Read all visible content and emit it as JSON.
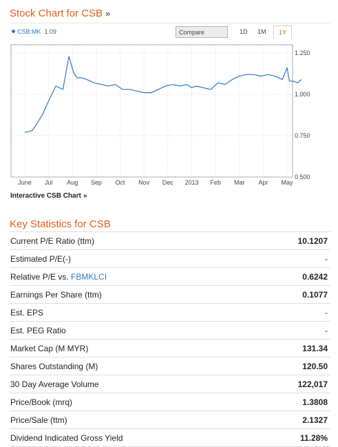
{
  "chart_section": {
    "title": "Stock Chart for CSB",
    "title_chevron": "»",
    "legend": {
      "ticker": "CSB:MK",
      "price": "1.09"
    },
    "compare": {
      "value": "Compare"
    },
    "ranges": [
      {
        "label": "1D",
        "active": false
      },
      {
        "label": "1M",
        "active": false
      },
      {
        "label": "1Y",
        "active": true
      }
    ],
    "interactive_link": {
      "label": "Interactive CSB Chart",
      "chevron": "»"
    }
  },
  "chart_data": {
    "type": "line",
    "title": "",
    "xlabel": "",
    "ylabel": "",
    "x_tick_labels": [
      "June",
      "Jul",
      "Aug",
      "Sep",
      "Oct",
      "Nov",
      "Dec",
      "2013",
      "Feb",
      "Mar",
      "Apr",
      "May"
    ],
    "y_tick_labels": [
      "1.250",
      "1.000",
      "0.750",
      "0.500"
    ],
    "ylim": [
      0.5,
      1.3
    ],
    "grid": true,
    "series": [
      {
        "name": "CSB:MK",
        "x": [
          0,
          0.3,
          0.5,
          0.75,
          1,
          1.3,
          1.6,
          1.85,
          2.05,
          2.2,
          2.4,
          2.6,
          2.9,
          3.2,
          3.5,
          3.8,
          4.1,
          4.4,
          4.7,
          5,
          5.3,
          5.6,
          5.9,
          6.2,
          6.5,
          6.8,
          7,
          7.2,
          7.5,
          7.8,
          8.1,
          8.4,
          8.7,
          9,
          9.3,
          9.6,
          9.9,
          10.2,
          10.5,
          10.8,
          11,
          11.1,
          11.25,
          11.45,
          11.6
        ],
        "values": [
          0.77,
          0.78,
          0.82,
          0.88,
          0.96,
          1.05,
          1.03,
          1.23,
          1.13,
          1.1,
          1.1,
          1.09,
          1.07,
          1.06,
          1.05,
          1.06,
          1.03,
          1.03,
          1.02,
          1.01,
          1.01,
          1.03,
          1.05,
          1.06,
          1.05,
          1.06,
          1.04,
          1.05,
          1.04,
          1.03,
          1.07,
          1.06,
          1.09,
          1.11,
          1.12,
          1.12,
          1.11,
          1.12,
          1.11,
          1.09,
          1.16,
          1.08,
          1.08,
          1.07,
          1.09
        ],
        "color": "#2d78c8"
      }
    ]
  },
  "stats_section": {
    "title": "Key Statistics for CSB",
    "rows": [
      {
        "label": "Current P/E Ratio (ttm)",
        "value": "10.1207"
      },
      {
        "label": "Estimated P/E(-)",
        "value": "-"
      },
      {
        "label": "Relative P/E vs.",
        "link": "FBMKLCI",
        "value": "0.6242"
      },
      {
        "label": "Earnings Per Share (ttm)",
        "value": "0.1077"
      },
      {
        "label": "Est. EPS",
        "value": "-"
      },
      {
        "label": "Est. PEG Ratio",
        "value": "-"
      },
      {
        "label": "Market Cap (M MYR)",
        "value": "131.34"
      },
      {
        "label": "Shares Outstanding (M)",
        "value": "120.50"
      },
      {
        "label": "30 Day Average Volume",
        "value": "122,017"
      },
      {
        "label": "Price/Book (mrq)",
        "value": "1.3808"
      },
      {
        "label": "Price/Sale (ttm)",
        "value": "2.1327"
      },
      {
        "label": "Dividend Indicated Gross Yield",
        "value": "11.28%"
      }
    ]
  },
  "colors": {
    "accent": "#e0601a",
    "line": "#2d78c8",
    "link": "#2d78c8"
  }
}
